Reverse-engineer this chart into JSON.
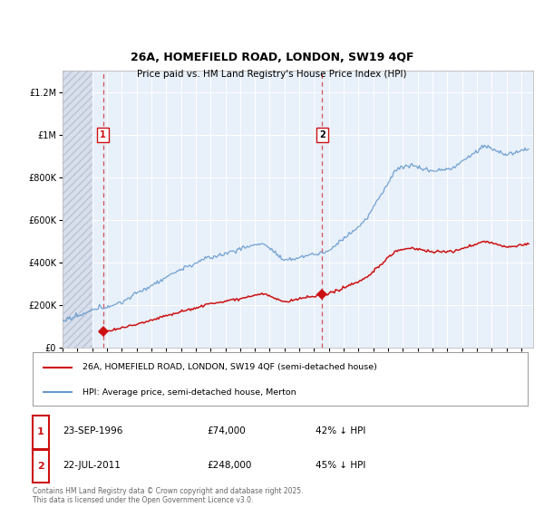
{
  "title": "26A, HOMEFIELD ROAD, LONDON, SW19 4QF",
  "subtitle": "Price paid vs. HM Land Registry's House Price Index (HPI)",
  "ylim": [
    0,
    1300000
  ],
  "yticks": [
    0,
    200000,
    400000,
    600000,
    800000,
    1000000,
    1200000
  ],
  "ytick_labels": [
    "£0",
    "£200K",
    "£400K",
    "£600K",
    "£800K",
    "£1M",
    "£1.2M"
  ],
  "xlim_start": 1994.0,
  "xlim_end": 2025.8,
  "bg_color": "#ffffff",
  "plot_bg": "#e8f0fa",
  "grid_color": "#ffffff",
  "sale1_date": 1996.73,
  "sale1_price": 74000,
  "sale2_date": 2011.55,
  "sale2_price": 248000,
  "hatch_end": 1996.0,
  "legend_line1": "26A, HOMEFIELD ROAD, LONDON, SW19 4QF (semi-detached house)",
  "legend_line2": "HPI: Average price, semi-detached house, Merton",
  "footer": "Contains HM Land Registry data © Crown copyright and database right 2025.\nThis data is licensed under the Open Government Licence v3.0.",
  "table_row1": [
    "1",
    "23-SEP-1996",
    "£74,000",
    "42% ↓ HPI"
  ],
  "table_row2": [
    "2",
    "22-JUL-2011",
    "£248,000",
    "45% ↓ HPI"
  ],
  "red_color": "#cc1111",
  "blue_color": "#6699cc"
}
